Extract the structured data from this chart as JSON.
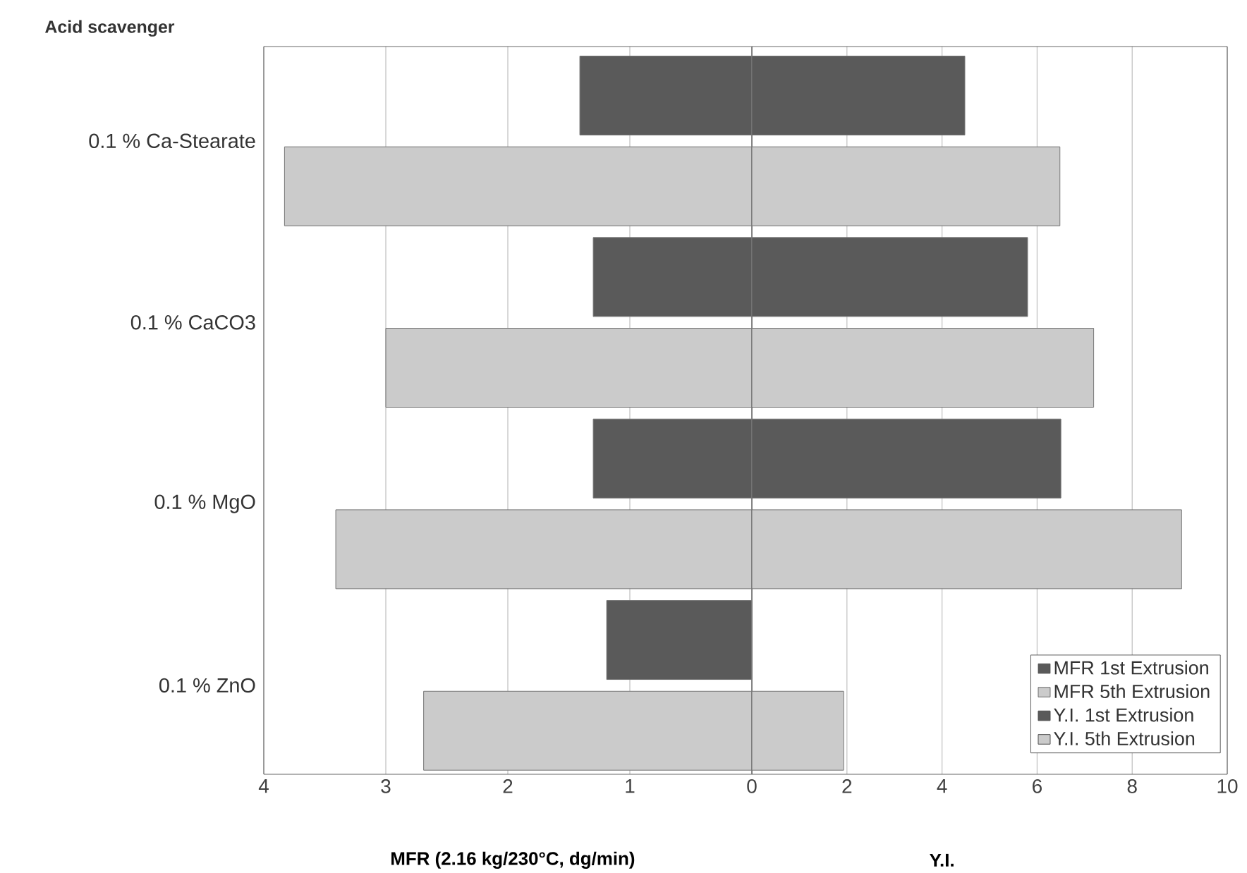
{
  "chart_data": [
    {
      "type": "bar",
      "orientation": "horizontal",
      "ylabel": "Acid scavenger",
      "xlabel": "MFR (2.16 kg/230°C, dg/min)",
      "categories": [
        "0.1 % Ca-Stearate",
        "0.1 % CaCO3",
        "0.1 % MgO",
        "0.1 % ZnO"
      ],
      "series": [
        {
          "name": "MFR 1st Extrusion",
          "color": "#5a5a5a",
          "values": [
            1.41,
            1.3,
            1.3,
            1.19
          ]
        },
        {
          "name": "MFR 5th Extrusion",
          "color": "#cbcbcb",
          "values": [
            3.83,
            3.0,
            3.41,
            2.69
          ]
        }
      ],
      "xlim": [
        4,
        0
      ],
      "xticks": [
        0,
        1,
        2,
        3,
        4
      ],
      "grid": "x"
    },
    {
      "type": "bar",
      "orientation": "horizontal",
      "xlabel": "Y.I.",
      "series": [
        {
          "name": "Y.I. 1st Extrusion",
          "color": "#5a5a5a",
          "values": [
            4.48,
            5.8,
            6.5,
            null
          ]
        },
        {
          "name": "Y.I. 5th Extrusion",
          "color": "#cbcbcb",
          "values": [
            6.48,
            7.19,
            9.04,
            1.93
          ]
        }
      ],
      "xlim": [
        0,
        10
      ],
      "xticks": [
        {
          "value": 0,
          "label": null
        },
        2,
        4,
        6,
        8,
        10
      ],
      "grid": "x",
      "legend": "bottom right",
      "tick_labels": "x"
    }
  ]
}
